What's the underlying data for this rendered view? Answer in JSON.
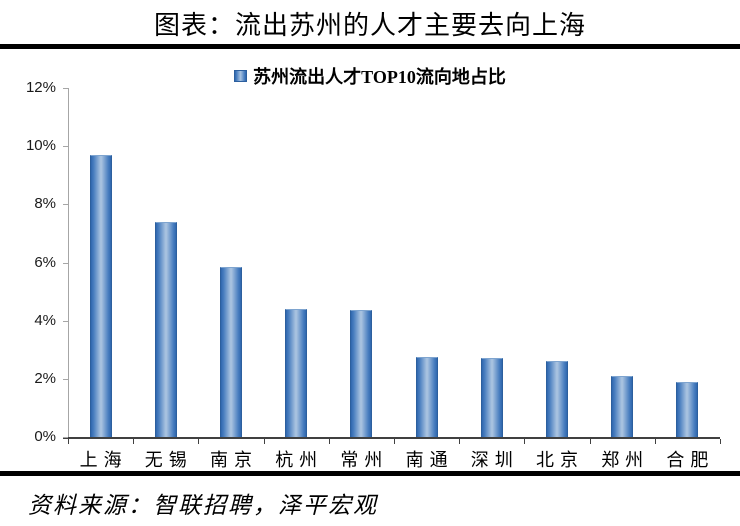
{
  "header": {
    "title": "图表：流出苏州的人才主要去向上海"
  },
  "legend": {
    "label": "苏州流出人才TOP10流向地占比",
    "swatch_color": "#4a7fc0"
  },
  "chart_data": {
    "type": "bar",
    "title": "苏州流出人才TOP10流向地占比",
    "categories": [
      "上海",
      "无锡",
      "南京",
      "杭州",
      "常州",
      "南通",
      "深圳",
      "北京",
      "郑州",
      "合肥"
    ],
    "values": [
      9.7,
      7.4,
      5.85,
      4.4,
      4.35,
      2.75,
      2.7,
      2.6,
      2.1,
      1.9
    ],
    "unit": "%",
    "xlabel": "",
    "ylabel": "",
    "ylim": [
      0,
      12
    ],
    "y_tick_step": 2,
    "y_tick_labels": [
      "0%",
      "2%",
      "4%",
      "6%",
      "8%",
      "10%",
      "12%"
    ],
    "gridlines": false,
    "legend_position": "top-center",
    "bar_colors": {
      "edge": "#2f67ae",
      "center": "#a9c3e0",
      "border": "#2c5f9e"
    },
    "axis_colors": {
      "y_axis": "#a6a6a6",
      "x_axis": "#404040"
    }
  },
  "footer": {
    "source": "资料来源：智联招聘，泽平宏观"
  }
}
